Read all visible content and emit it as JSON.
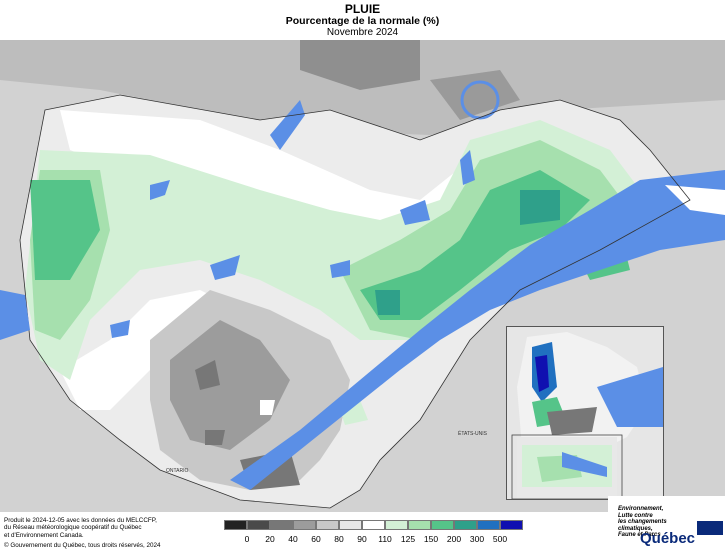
{
  "title": "PLUIE",
  "subtitle": "Pourcentage de la normale (%)",
  "period": "Novembre 2024",
  "credits": {
    "line1": "Produit le 2024-12-05 avec les données du MELCCFP,",
    "line2": "du Réseau météorologique coopératif du Québec",
    "line3": "et d'Environnement Canada.",
    "line4": "© Gouvernement du Québec, tous droits réservés, 2024"
  },
  "map_labels": {
    "ontario": "ONTARIO",
    "etats_unis": "ÉTATS-UNIS"
  },
  "legend": {
    "labels": [
      "0",
      "20",
      "40",
      "60",
      "80",
      "90",
      "110",
      "125",
      "150",
      "200",
      "300",
      "500"
    ],
    "colors": [
      "#222222",
      "#4a4a4a",
      "#777777",
      "#9c9c9c",
      "#c8c8c8",
      "#e8e8e8",
      "#ffffff",
      "#d3f0d6",
      "#a6e0ae",
      "#55c489",
      "#2fa08a",
      "#2070c0",
      "#1010b0"
    ]
  },
  "brand": {
    "line1": "Environnement,",
    "line2": "Lutte contre",
    "line3": "les changements",
    "line4": "climatiques,",
    "line5": "Faune et Parcs",
    "name": "Québec"
  },
  "colors": {
    "water": "#5b8fe6",
    "land_outside": "#d9d9d9"
  }
}
